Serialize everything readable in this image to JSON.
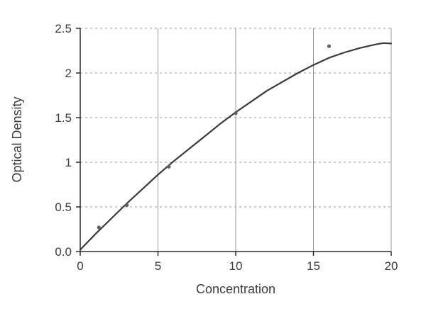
{
  "chart_data": {
    "type": "scatter",
    "title": "",
    "xlabel": "Concentration",
    "ylabel": "Optical Density",
    "xlim": [
      0,
      20
    ],
    "ylim": [
      0,
      2.5
    ],
    "x_tick_values": [
      0,
      5,
      10,
      15,
      20
    ],
    "x_tick_labels": [
      "0",
      "5",
      "10",
      "15",
      "20"
    ],
    "y_tick_values": [
      0,
      0.5,
      1,
      1.5,
      2,
      2.5
    ],
    "y_tick_labels": [
      "0.0",
      "0.5",
      "1",
      "1.5",
      "2",
      "2.5"
    ],
    "grid": {
      "vertical": "solid",
      "horizontal": "dashed",
      "visible": true
    },
    "legend": "none",
    "points": [
      [
        1.2,
        0.27
      ],
      [
        3.0,
        0.52
      ],
      [
        5.7,
        0.95
      ],
      [
        10.0,
        1.55
      ],
      [
        16.0,
        2.3
      ]
    ],
    "curve": [
      [
        0,
        0.02
      ],
      [
        1,
        0.2
      ],
      [
        2,
        0.37
      ],
      [
        3,
        0.54
      ],
      [
        4,
        0.7
      ],
      [
        5,
        0.86
      ],
      [
        6,
        1.01
      ],
      [
        7,
        1.15
      ],
      [
        8,
        1.29
      ],
      [
        9,
        1.43
      ],
      [
        10,
        1.56
      ],
      [
        11,
        1.68
      ],
      [
        12,
        1.8
      ],
      [
        13,
        1.9
      ],
      [
        14,
        2.0
      ],
      [
        15,
        2.09
      ],
      [
        16,
        2.17
      ],
      [
        17,
        2.23
      ],
      [
        18,
        2.28
      ],
      [
        19,
        2.32
      ],
      [
        19.5,
        2.335
      ],
      [
        20,
        2.33
      ]
    ],
    "colors": {
      "curve": "#3a3a3a",
      "point": "#5f5f5f",
      "grid": "#9a9a9a",
      "axis": "#2b2b2b",
      "text": "#3c3c3c"
    }
  }
}
